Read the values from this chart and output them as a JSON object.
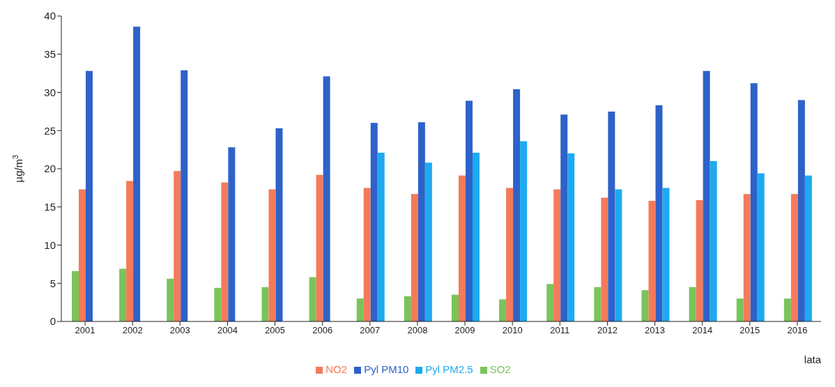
{
  "chart_data": {
    "type": "bar",
    "ylabel": "µg/m$^{3}$",
    "xlabel": "lata",
    "categories": [
      "2001",
      "2002",
      "2003",
      "2004",
      "2005",
      "2006",
      "2007",
      "2008",
      "2009",
      "2010",
      "2011",
      "2012",
      "2013",
      "2014",
      "2015",
      "2016"
    ],
    "series": [
      {
        "name": "SO2",
        "color": "#7ac35a",
        "values": [
          6.6,
          6.9,
          5.6,
          4.4,
          4.5,
          5.8,
          3.0,
          3.3,
          3.5,
          2.9,
          4.9,
          4.5,
          4.1,
          4.5,
          3.0,
          3.0
        ]
      },
      {
        "name": "NO2",
        "color": "#f47a5a",
        "values": [
          17.3,
          18.4,
          19.7,
          18.2,
          17.3,
          19.2,
          17.5,
          16.7,
          19.1,
          17.5,
          17.3,
          16.2,
          15.8,
          15.9,
          16.7,
          16.7
        ]
      },
      {
        "name": "Pyl PM10",
        "color": "#2e62c8",
        "values": [
          32.8,
          38.6,
          32.9,
          22.8,
          25.3,
          32.1,
          26.0,
          26.1,
          28.9,
          30.4,
          27.1,
          27.5,
          28.3,
          32.8,
          31.2,
          29.0
        ]
      },
      {
        "name": "Pyl PM2.5",
        "color": "#1eaaf0",
        "values": [
          null,
          null,
          null,
          null,
          null,
          null,
          22.1,
          20.8,
          22.1,
          23.6,
          22.0,
          17.3,
          17.5,
          21.0,
          19.4,
          19.1
        ]
      }
    ],
    "ylim": [
      0,
      40
    ],
    "yticks": [
      0,
      5,
      10,
      15,
      20,
      25,
      30,
      35,
      40
    ],
    "grid": false,
    "legend": "bottom"
  }
}
